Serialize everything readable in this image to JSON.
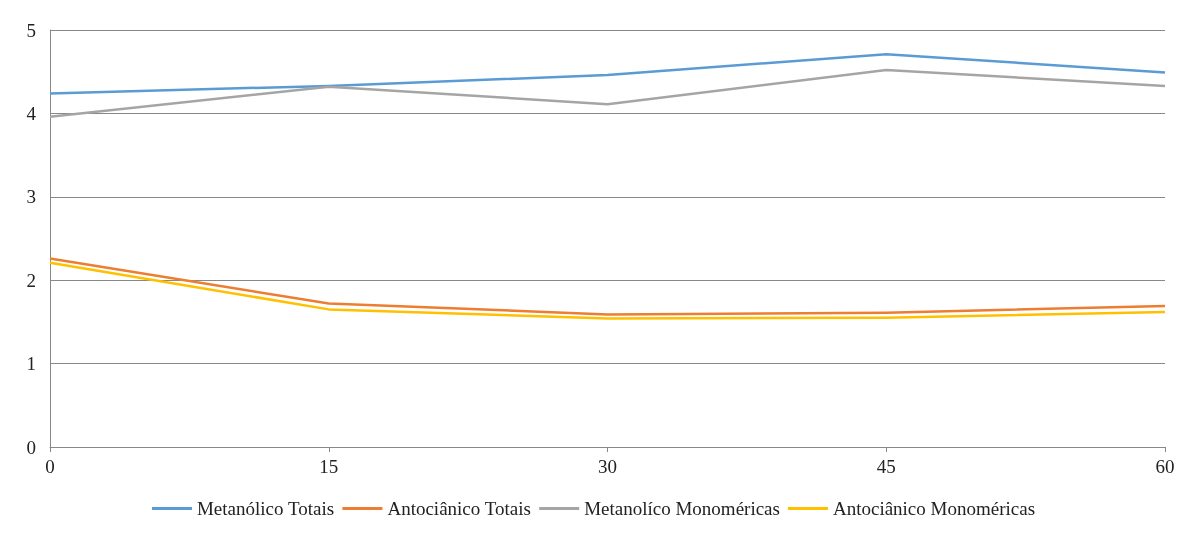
{
  "chart_data": {
    "type": "line",
    "x": [
      0,
      15,
      30,
      45,
      60
    ],
    "xlim": [
      0,
      60
    ],
    "xticks": [
      0,
      15,
      30,
      45,
      60
    ],
    "ylim": [
      0,
      5
    ],
    "yticks": [
      0,
      1,
      2,
      3,
      4,
      5
    ],
    "grid": "y",
    "legend": "bottom",
    "marker": "none",
    "line_style": "solid",
    "series": [
      {
        "name": "Metanólico Totais",
        "color": "#5b9bd5",
        "values": [
          4.24,
          4.33,
          4.46,
          4.71,
          4.49
        ]
      },
      {
        "name": "Antociânico Totais",
        "color": "#ed7d31",
        "values": [
          2.26,
          1.72,
          1.59,
          1.61,
          1.69
        ]
      },
      {
        "name": "Metanolíco Monoméricas",
        "color": "#a5a5a5",
        "values": [
          3.96,
          4.32,
          4.11,
          4.52,
          4.33
        ]
      },
      {
        "name": "Antociânico Monoméricas",
        "color": "#ffc000",
        "values": [
          2.21,
          1.65,
          1.54,
          1.55,
          1.62
        ]
      }
    ]
  }
}
